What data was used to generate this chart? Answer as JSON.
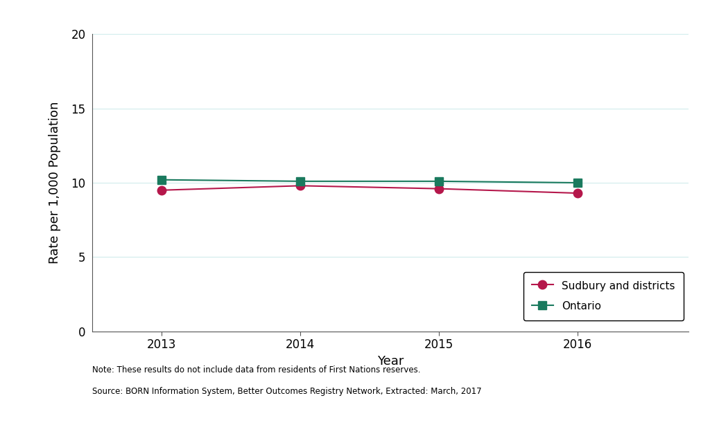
{
  "years": [
    2013,
    2014,
    2015,
    2016
  ],
  "sudbury_values": [
    9.5,
    9.8,
    9.6,
    9.3
  ],
  "ontario_values": [
    10.2,
    10.1,
    10.1,
    10.0
  ],
  "sudbury_color": "#b5174b",
  "ontario_color": "#1a7a5e",
  "xlabel": "Year",
  "ylabel": "Rate per 1,000 Population",
  "ylim": [
    0,
    20
  ],
  "yticks": [
    0,
    5,
    10,
    15,
    20
  ],
  "xlim": [
    2012.5,
    2016.8
  ],
  "sudbury_label": "Sudbury and districts",
  "ontario_label": "Ontario",
  "note_line1": "Note: These results do not include data from residents of First Nations reserves.",
  "note_line2": "Source: BORN Information System, Better Outcomes Registry Network, Extracted: March, 2017",
  "background_color": "#ffffff",
  "grid_color": "#d0ecec",
  "marker_size": 9,
  "line_width": 1.5,
  "axis_fontsize": 13,
  "tick_fontsize": 12,
  "legend_fontsize": 11,
  "note_fontsize": 8.5,
  "spine_color": "#555555"
}
